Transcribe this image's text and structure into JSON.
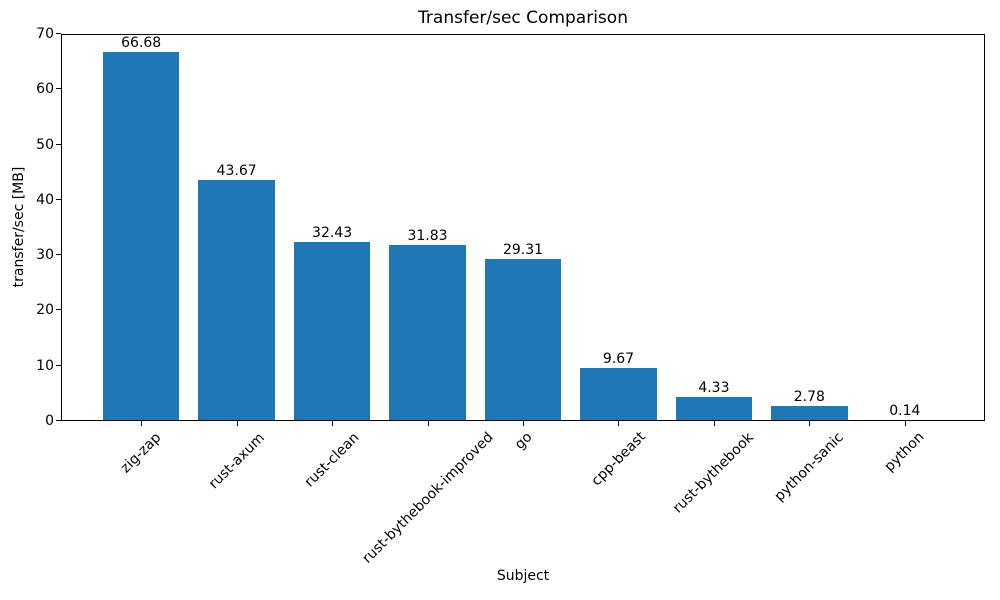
{
  "chart_data": {
    "type": "bar",
    "title": "Transfer/sec Comparison",
    "xlabel": "Subject",
    "ylabel": "transfer/sec [MB]",
    "categories": [
      "zig-zap",
      "rust-axum",
      "rust-clean",
      "rust-bythebook-improved",
      "go",
      "cpp-beast",
      "rust-bythebook",
      "python-sanic",
      "python"
    ],
    "values": [
      66.68,
      43.67,
      32.43,
      31.83,
      29.31,
      9.67,
      4.33,
      2.78,
      0.14
    ],
    "value_labels": [
      "66.68",
      "43.67",
      "32.43",
      "31.83",
      "29.31",
      "9.67",
      "4.33",
      "2.78",
      "0.14"
    ],
    "ylim": [
      0,
      70
    ],
    "yticks": [
      0,
      10,
      20,
      30,
      40,
      50,
      60,
      70
    ],
    "bar_color": "#1f77b4",
    "axis_color": "#000000",
    "grid": false,
    "legend": null
  }
}
